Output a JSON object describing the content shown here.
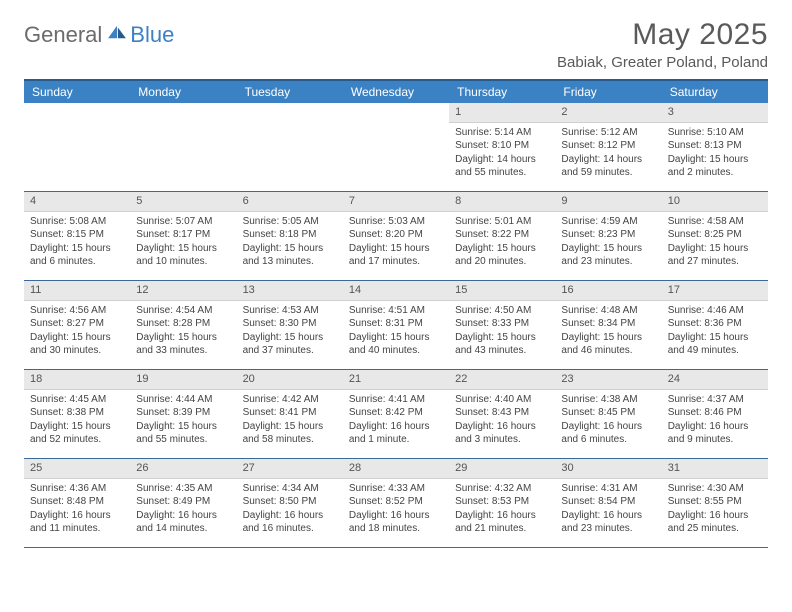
{
  "brand": {
    "part1": "General",
    "part2": "Blue"
  },
  "title": "May 2025",
  "location": "Babiak, Greater Poland, Poland",
  "colors": {
    "header_bg": "#3b82c4",
    "header_border": "#2a5a8a",
    "row_sep": "#3b6a9a",
    "daynum_bg": "#e8e8e8",
    "text": "#444444"
  },
  "day_names": [
    "Sunday",
    "Monday",
    "Tuesday",
    "Wednesday",
    "Thursday",
    "Friday",
    "Saturday"
  ],
  "weeks": [
    [
      null,
      null,
      null,
      null,
      {
        "n": "1",
        "sr": "5:14 AM",
        "ss": "8:10 PM",
        "dl": "14 hours and 55 minutes."
      },
      {
        "n": "2",
        "sr": "5:12 AM",
        "ss": "8:12 PM",
        "dl": "14 hours and 59 minutes."
      },
      {
        "n": "3",
        "sr": "5:10 AM",
        "ss": "8:13 PM",
        "dl": "15 hours and 2 minutes."
      }
    ],
    [
      {
        "n": "4",
        "sr": "5:08 AM",
        "ss": "8:15 PM",
        "dl": "15 hours and 6 minutes."
      },
      {
        "n": "5",
        "sr": "5:07 AM",
        "ss": "8:17 PM",
        "dl": "15 hours and 10 minutes."
      },
      {
        "n": "6",
        "sr": "5:05 AM",
        "ss": "8:18 PM",
        "dl": "15 hours and 13 minutes."
      },
      {
        "n": "7",
        "sr": "5:03 AM",
        "ss": "8:20 PM",
        "dl": "15 hours and 17 minutes."
      },
      {
        "n": "8",
        "sr": "5:01 AM",
        "ss": "8:22 PM",
        "dl": "15 hours and 20 minutes."
      },
      {
        "n": "9",
        "sr": "4:59 AM",
        "ss": "8:23 PM",
        "dl": "15 hours and 23 minutes."
      },
      {
        "n": "10",
        "sr": "4:58 AM",
        "ss": "8:25 PM",
        "dl": "15 hours and 27 minutes."
      }
    ],
    [
      {
        "n": "11",
        "sr": "4:56 AM",
        "ss": "8:27 PM",
        "dl": "15 hours and 30 minutes."
      },
      {
        "n": "12",
        "sr": "4:54 AM",
        "ss": "8:28 PM",
        "dl": "15 hours and 33 minutes."
      },
      {
        "n": "13",
        "sr": "4:53 AM",
        "ss": "8:30 PM",
        "dl": "15 hours and 37 minutes."
      },
      {
        "n": "14",
        "sr": "4:51 AM",
        "ss": "8:31 PM",
        "dl": "15 hours and 40 minutes."
      },
      {
        "n": "15",
        "sr": "4:50 AM",
        "ss": "8:33 PM",
        "dl": "15 hours and 43 minutes."
      },
      {
        "n": "16",
        "sr": "4:48 AM",
        "ss": "8:34 PM",
        "dl": "15 hours and 46 minutes."
      },
      {
        "n": "17",
        "sr": "4:46 AM",
        "ss": "8:36 PM",
        "dl": "15 hours and 49 minutes."
      }
    ],
    [
      {
        "n": "18",
        "sr": "4:45 AM",
        "ss": "8:38 PM",
        "dl": "15 hours and 52 minutes."
      },
      {
        "n": "19",
        "sr": "4:44 AM",
        "ss": "8:39 PM",
        "dl": "15 hours and 55 minutes."
      },
      {
        "n": "20",
        "sr": "4:42 AM",
        "ss": "8:41 PM",
        "dl": "15 hours and 58 minutes."
      },
      {
        "n": "21",
        "sr": "4:41 AM",
        "ss": "8:42 PM",
        "dl": "16 hours and 1 minute."
      },
      {
        "n": "22",
        "sr": "4:40 AM",
        "ss": "8:43 PM",
        "dl": "16 hours and 3 minutes."
      },
      {
        "n": "23",
        "sr": "4:38 AM",
        "ss": "8:45 PM",
        "dl": "16 hours and 6 minutes."
      },
      {
        "n": "24",
        "sr": "4:37 AM",
        "ss": "8:46 PM",
        "dl": "16 hours and 9 minutes."
      }
    ],
    [
      {
        "n": "25",
        "sr": "4:36 AM",
        "ss": "8:48 PM",
        "dl": "16 hours and 11 minutes."
      },
      {
        "n": "26",
        "sr": "4:35 AM",
        "ss": "8:49 PM",
        "dl": "16 hours and 14 minutes."
      },
      {
        "n": "27",
        "sr": "4:34 AM",
        "ss": "8:50 PM",
        "dl": "16 hours and 16 minutes."
      },
      {
        "n": "28",
        "sr": "4:33 AM",
        "ss": "8:52 PM",
        "dl": "16 hours and 18 minutes."
      },
      {
        "n": "29",
        "sr": "4:32 AM",
        "ss": "8:53 PM",
        "dl": "16 hours and 21 minutes."
      },
      {
        "n": "30",
        "sr": "4:31 AM",
        "ss": "8:54 PM",
        "dl": "16 hours and 23 minutes."
      },
      {
        "n": "31",
        "sr": "4:30 AM",
        "ss": "8:55 PM",
        "dl": "16 hours and 25 minutes."
      }
    ]
  ],
  "labels": {
    "sunrise": "Sunrise:",
    "sunset": "Sunset:",
    "daylight": "Daylight:"
  }
}
